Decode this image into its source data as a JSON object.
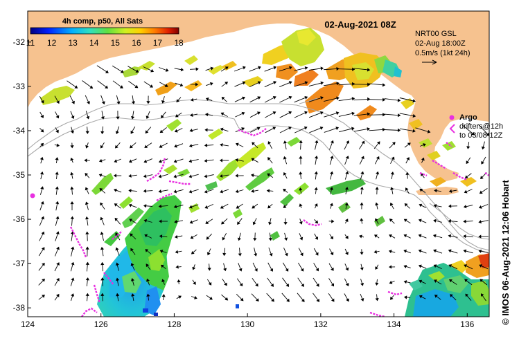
{
  "map": {
    "date_title": "02-Aug-2021 08Z",
    "colorbar": {
      "title": "4h comp, p50, All Sats",
      "ticks": [
        "11",
        "12",
        "13",
        "14",
        "15",
        "16",
        "17",
        "18"
      ],
      "min": 11,
      "max": 18
    },
    "x_axis": {
      "labels": [
        "124",
        "126",
        "128",
        "130",
        "132",
        "134",
        "136"
      ],
      "values": [
        124,
        126,
        128,
        130,
        132,
        134,
        136
      ],
      "min": 124,
      "max": 136.6
    },
    "y_axis": {
      "labels": [
        "-32",
        "-33",
        "-34",
        "-35",
        "-36",
        "-37",
        "-38"
      ],
      "values": [
        -32,
        -33,
        -34,
        -35,
        -36,
        -37,
        -38
      ],
      "min": -38.2,
      "max": -31.3
    },
    "current_info": {
      "line1": "NRT00 GSL",
      "line2": "02-Aug 18:00Z",
      "line3": "0.5m/s (1kt 24h)"
    },
    "legend": {
      "argo_label": "Argo",
      "drifters_line1": "drifters@12h",
      "drifters_line2": "to 03/08-12Z"
    },
    "credit": "© IMOS 06-Aug-2021 12:06 Hobart",
    "colors": {
      "land": "#f6c28f",
      "argo": "#e830e0",
      "drifter": "#e830e0",
      "bathymetry": "#a8a8a8"
    },
    "icons": [
      "current-arrow-icon",
      "argo-float-icon",
      "drifter-track-icon"
    ]
  }
}
